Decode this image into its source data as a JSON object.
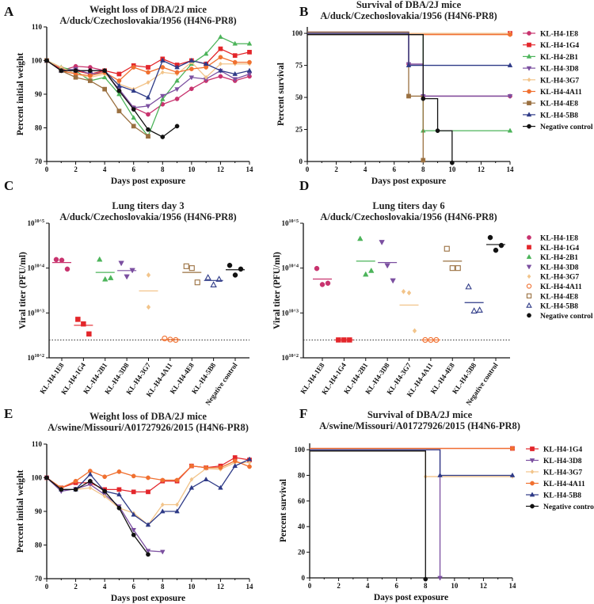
{
  "panels": [
    "A",
    "B",
    "C",
    "D",
    "E",
    "F"
  ],
  "chart_data": [
    {
      "type": "line",
      "title": [
        "Weight loss of DBA/2J mice",
        "A/duck/Czechoslovakia/1956 (H4N6-PR8)"
      ],
      "xlabel": "Days post exposure",
      "ylabel": "Percent initial weight",
      "xlim": [
        0,
        14
      ],
      "ylim": [
        70,
        110
      ],
      "xticks": [
        0,
        2,
        4,
        6,
        8,
        10,
        12,
        14
      ],
      "yticks": [
        70,
        80,
        90,
        100,
        110
      ],
      "error_bars": true,
      "series": [
        {
          "name": "KL-H4-1E8",
          "color": "#c8336e",
          "marker": "circle",
          "values": [
            100,
            97,
            98.3,
            98,
            97,
            91,
            86,
            84,
            87,
            88.6,
            91.6,
            94,
            95.3,
            94,
            95.3
          ]
        },
        {
          "name": "KL-H4-1G4",
          "color": "#e3262b",
          "marker": "square",
          "values": [
            100,
            97.5,
            97,
            96,
            97,
            96,
            98.5,
            98,
            100.5,
            98.7,
            100,
            99,
            103.5,
            101.5,
            102.5
          ]
        },
        {
          "name": "KL-H4-2B1",
          "color": "#4cb45a",
          "marker": "tri-up",
          "values": [
            100,
            98,
            97,
            94,
            95,
            90,
            83,
            77.5,
            88.5,
            94,
            99,
            102,
            107,
            105,
            105
          ]
        },
        {
          "name": "KL-H4-3D8",
          "color": "#7b4fa0",
          "marker": "tri-down",
          "values": [
            100,
            97,
            97.5,
            96,
            96.5,
            91.5,
            86,
            86.5,
            89.5,
            91.5,
            95,
            94.5,
            97,
            94.5,
            96
          ]
        },
        {
          "name": "KL-H4-3G7",
          "color": "#f2c48a",
          "marker": "diamond",
          "values": [
            100,
            98,
            96,
            95,
            96,
            93,
            91.5,
            93.5,
            96.5,
            96,
            99.5,
            95,
            99,
            99,
            99
          ]
        },
        {
          "name": "KL-H4-4A11",
          "color": "#f07030",
          "marker": "circle",
          "values": [
            100,
            97,
            96,
            95.5,
            96.5,
            94,
            98,
            96.5,
            98,
            96.5,
            97.5,
            98,
            101,
            99.5,
            99.5
          ]
        },
        {
          "name": "KL-H4-4E8",
          "color": "#9a7040",
          "marker": "square",
          "values": [
            100,
            97,
            95,
            94,
            91.5,
            85,
            80.5,
            77.5
          ]
        },
        {
          "name": "KL-H4-5B8",
          "color": "#2e3a87",
          "marker": "tri-up",
          "values": [
            100,
            97,
            97,
            97,
            97,
            92.5,
            91,
            89,
            100,
            98,
            100,
            99,
            97,
            96,
            97
          ]
        },
        {
          "name": "Negative control",
          "color": "#111111",
          "marker": "circle",
          "values": [
            100,
            97,
            97,
            97,
            97,
            91,
            85.5,
            79.5,
            77.3,
            80.5
          ]
        }
      ]
    },
    {
      "type": "line",
      "subtype": "survival-step",
      "title": [
        "Survival of DBA/2J mice",
        "A/duck/Czechoslovakia/1956 (H4N6-PR8)"
      ],
      "xlabel": "Days post exposure",
      "ylabel": "Percent survival",
      "xlim": [
        0,
        14
      ],
      "ylim": [
        0,
        105
      ],
      "xticks": [
        0,
        2,
        4,
        6,
        8,
        10,
        12,
        14
      ],
      "yticks": [
        0,
        25,
        50,
        75,
        100
      ],
      "legend": "right",
      "series": [
        {
          "name": "KL-H4-1E8",
          "color": "#c8336e",
          "marker": "circle",
          "steps": [
            [
              0,
              100
            ],
            [
              7,
              75
            ],
            [
              8,
              50
            ],
            [
              14,
              50
            ]
          ]
        },
        {
          "name": "KL-H4-1G4",
          "color": "#e3262b",
          "marker": "square",
          "steps": [
            [
              0,
              100
            ],
            [
              14,
              100
            ]
          ]
        },
        {
          "name": "KL-H4-2B1",
          "color": "#4cb45a",
          "marker": "tri-up",
          "steps": [
            [
              0,
              100
            ],
            [
              8,
              25
            ],
            [
              14,
              25
            ]
          ]
        },
        {
          "name": "KL-H4-3D8",
          "color": "#7b4fa0",
          "marker": "tri-down",
          "steps": [
            [
              0,
              100
            ],
            [
              7,
              75
            ],
            [
              8,
              50
            ],
            [
              14,
              50
            ]
          ]
        },
        {
          "name": "KL-H4-3G7",
          "color": "#f2c48a",
          "marker": "diamond",
          "steps": [
            [
              0,
              100
            ],
            [
              14,
              100
            ]
          ]
        },
        {
          "name": "KL-H4-4A11",
          "color": "#f07030",
          "marker": "circle",
          "steps": [
            [
              0,
              100
            ],
            [
              14,
              100
            ]
          ]
        },
        {
          "name": "KL-H4-4E8",
          "color": "#9a7040",
          "marker": "square",
          "steps": [
            [
              0,
              100
            ],
            [
              7,
              50
            ],
            [
              8,
              0
            ]
          ]
        },
        {
          "name": "KL-H4-5B8",
          "color": "#2e3a87",
          "marker": "tri-up",
          "steps": [
            [
              0,
              100
            ],
            [
              7,
              75
            ],
            [
              14,
              75
            ]
          ]
        },
        {
          "name": "Negative control",
          "color": "#111111",
          "marker": "circle",
          "steps": [
            [
              0,
              100
            ],
            [
              8,
              50
            ],
            [
              9,
              25
            ],
            [
              10,
              0
            ]
          ]
        }
      ]
    },
    {
      "type": "scatter",
      "title": [
        "Lung titers day 3",
        "A/duck/Czechoslovakia/1956 (H4N6-PR8)"
      ],
      "ylabel": "Viral titer (PFU/ml)",
      "yscale": "log",
      "ylim": [
        100,
        100000
      ],
      "yticks": [
        "10^2",
        "10^3",
        "10^4",
        "10^5"
      ],
      "limit_of_detection": 250,
      "categories": [
        "KL-H4-1E8",
        "KL-H4-1G4",
        "KL-H4-2B1",
        "KL-H4-3D8",
        "KL-H4-3G7",
        "KL-H4-4A11",
        "KL-H4-4E8",
        "KL-H4-5B8",
        "Negative control"
      ],
      "series": [
        {
          "name": "KL-H4-1E8",
          "color": "#c8336e",
          "marker": "circle",
          "points": [
            15500,
            15000,
            9500
          ],
          "mean": 13300
        },
        {
          "name": "KL-H4-1G4",
          "color": "#e3262b",
          "marker": "square",
          "points": [
            720,
            570,
            340
          ],
          "mean": 530
        },
        {
          "name": "KL-H4-2B1",
          "color": "#4cb45a",
          "marker": "tri-up",
          "points": [
            15500,
            5600,
            6000
          ],
          "mean": 8000
        },
        {
          "name": "KL-H4-3D8",
          "color": "#7b4fa0",
          "marker": "tri-down",
          "points": [
            13000,
            6500,
            9000
          ],
          "mean": 8800
        },
        {
          "name": "KL-H4-3G7",
          "color": "#f2c48a",
          "marker": "diamond",
          "points": [
            7000,
            1350
          ],
          "mean": 3100
        },
        {
          "name": "KL-H4-4A11",
          "color": "#f07030",
          "marker": "open-circle",
          "points": [
            270,
            255,
            250
          ],
          "mean": 255
        },
        {
          "name": "KL-H4-4E8",
          "color": "#9a7040",
          "marker": "open-square",
          "points": [
            11000,
            10000,
            4800
          ],
          "mean": 8000
        },
        {
          "name": "KL-H4-5B8",
          "color": "#2e3a87",
          "marker": "open-tri",
          "points": [
            6100,
            4200,
            5600
          ],
          "mean": 5300
        },
        {
          "name": "Negative control",
          "color": "#111111",
          "marker": "circle",
          "points": [
            11500,
            7000,
            9500
          ],
          "mean": 9200
        }
      ]
    },
    {
      "type": "scatter",
      "title": [
        "Lung titers day 6",
        "A/duck/Czechoslovakia/1956 (H4N6-PR8)"
      ],
      "ylabel": "Viral titer (PFU/ml)",
      "yscale": "log",
      "ylim": [
        100,
        100000
      ],
      "yticks": [
        "10^2",
        "10^3",
        "10^4",
        "10^5"
      ],
      "limit_of_detection": 250,
      "legend": "right",
      "categories": [
        "KL-H4-1E8",
        "KL-H4-1G4",
        "KL-H4-2B1",
        "KL-H4-3D8",
        "KL-H4-3G7",
        "KL-H4-4A11",
        "KL-H4-4E8",
        "KL-H4-5B8",
        "Negative control"
      ],
      "series": [
        {
          "name": "KL-H4-1E8",
          "color": "#c8336e",
          "marker": "circle",
          "points": [
            9800,
            4300,
            4600
          ],
          "mean": 5700
        },
        {
          "name": "KL-H4-1G4",
          "color": "#e3262b",
          "marker": "square",
          "points": [
            250,
            250,
            250
          ],
          "mean": 250
        },
        {
          "name": "KL-H4-2B1",
          "color": "#4cb45a",
          "marker": "tri-up",
          "points": [
            45000,
            7200,
            8700
          ],
          "mean": 14300
        },
        {
          "name": "KL-H4-3D8",
          "color": "#7b4fa0",
          "marker": "tri-down",
          "points": [
            38000,
            11500,
            5300
          ],
          "mean": 13300
        },
        {
          "name": "KL-H4-3G7",
          "color": "#f2c48a",
          "marker": "diamond",
          "points": [
            3000,
            2800,
            400
          ],
          "mean": 1500
        },
        {
          "name": "KL-H4-4A11",
          "color": "#f07030",
          "marker": "open-circle",
          "points": [
            250,
            250,
            250
          ],
          "mean": 250
        },
        {
          "name": "KL-H4-4E8",
          "color": "#9a7040",
          "marker": "open-square",
          "points": [
            27000,
            10000,
            10000
          ],
          "mean": 14300
        },
        {
          "name": "KL-H4-5B8",
          "color": "#2e3a87",
          "marker": "open-tri",
          "points": [
            3800,
            1100,
            1150
          ],
          "mean": 1700
        },
        {
          "name": "Negative control",
          "color": "#111111",
          "marker": "circle",
          "points": [
            48000,
            25000,
            32000
          ],
          "mean": 33500
        }
      ]
    },
    {
      "type": "line",
      "title": [
        "Weight loss of DBA/2J mice",
        "A/swine/Missouri/A01727926/2015 (H4N6-PR8)"
      ],
      "xlabel": "Days post exposure",
      "ylabel": "Percent initial weight",
      "xlim": [
        0,
        14
      ],
      "ylim": [
        70,
        110
      ],
      "xticks": [
        0,
        2,
        4,
        6,
        8,
        10,
        12,
        14
      ],
      "yticks": [
        70,
        80,
        90,
        100,
        110
      ],
      "error_bars": true,
      "series": [
        {
          "name": "KL-H4-1G4",
          "color": "#e3262b",
          "marker": "square",
          "values": [
            100,
            97,
            98.5,
            98.5,
            96.5,
            96.5,
            95.8,
            95.8,
            99,
            99,
            103.5,
            103,
            103.5,
            106,
            105.3
          ]
        },
        {
          "name": "KL-H4-3D8",
          "color": "#7b4fa0",
          "marker": "tri-down",
          "values": [
            100,
            96,
            96.7,
            98,
            95,
            91.5,
            84.5,
            78.3,
            78
          ]
        },
        {
          "name": "KL-H4-3G7",
          "color": "#f2c48a",
          "marker": "diamond",
          "values": [
            100,
            96.5,
            96.5,
            97,
            94.5,
            91,
            89.5,
            86,
            92,
            92,
            99.5,
            102.7,
            102.5,
            104.5,
            104.5
          ]
        },
        {
          "name": "KL-H4-4A11",
          "color": "#f07030",
          "marker": "circle",
          "values": [
            100,
            97,
            99,
            102,
            100.3,
            101.8,
            100.5,
            100,
            99.3,
            99.3,
            103.5,
            103,
            103,
            105,
            103.3
          ]
        },
        {
          "name": "KL-H4-5B8",
          "color": "#2e3a87",
          "marker": "tri-up",
          "values": [
            100,
            96.5,
            96.5,
            101,
            96,
            95,
            89,
            86,
            90,
            90,
            97,
            99.5,
            97,
            103.5,
            105.5
          ]
        },
        {
          "name": "Negative control",
          "color": "#111111",
          "marker": "circle",
          "values": [
            100,
            96.5,
            96.5,
            99,
            96,
            91,
            83,
            77.2
          ]
        }
      ]
    },
    {
      "type": "line",
      "subtype": "survival-step",
      "title": [
        "Survival of DBA/2J mice",
        "A/swine/Missouri/A01727926/2015 (H4N6-PR8)"
      ],
      "xlabel": "Days post exposure",
      "ylabel": "Percent survival",
      "xlim": [
        0,
        14
      ],
      "ylim": [
        0,
        105
      ],
      "xticks": [
        0,
        2,
        4,
        6,
        8,
        10,
        12,
        14
      ],
      "yticks": [
        0,
        20,
        40,
        60,
        80,
        100
      ],
      "legend": "right",
      "series": [
        {
          "name": "KL-H4-1G4",
          "color": "#e3262b",
          "marker": "square",
          "steps": [
            [
              0,
              100
            ],
            [
              14,
              100
            ]
          ]
        },
        {
          "name": "KL-H4-3D8",
          "color": "#7b4fa0",
          "marker": "tri-down",
          "steps": [
            [
              0,
              100
            ],
            [
              9,
              0
            ]
          ]
        },
        {
          "name": "KL-H4-3G7",
          "color": "#f2c48a",
          "marker": "diamond",
          "steps": [
            [
              0,
              100
            ],
            [
              8,
              80
            ],
            [
              14,
              80
            ]
          ]
        },
        {
          "name": "KL-H4-4A11",
          "color": "#f07030",
          "marker": "circle",
          "steps": [
            [
              0,
              100
            ],
            [
              14,
              100
            ]
          ]
        },
        {
          "name": "KL-H4-5B8",
          "color": "#2e3a87",
          "marker": "tri-up",
          "steps": [
            [
              0,
              100
            ],
            [
              9,
              80
            ],
            [
              14,
              80
            ]
          ]
        },
        {
          "name": "Negative control",
          "color": "#111111",
          "marker": "circle",
          "steps": [
            [
              0,
              100
            ],
            [
              8,
              0
            ]
          ]
        }
      ]
    }
  ]
}
